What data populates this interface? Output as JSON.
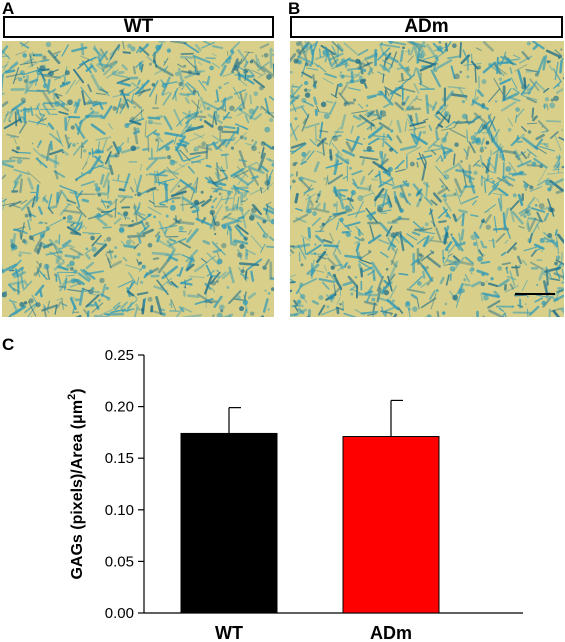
{
  "panels": {
    "a": {
      "letter": "A",
      "label": "WT"
    },
    "b": {
      "letter": "B",
      "label": "ADm"
    },
    "c": {
      "letter": "C"
    }
  },
  "colors": {
    "stain_background": "#d8cf8a",
    "stain_blue": "#2f9ab8",
    "stain_dark": "#1f6f8a",
    "bar_wt": "#000000",
    "bar_adm": "#ff0000"
  },
  "chart_data": {
    "type": "bar",
    "categories": [
      "WT",
      "ADm"
    ],
    "values": [
      0.174,
      0.171
    ],
    "errors": [
      0.025,
      0.035
    ],
    "ylabel_prefix": "GAGs (pixels)/Area (",
    "ylabel_unit": "μm",
    "ylabel_exp": "2",
    "ylabel_suffix": ")",
    "ylim": [
      0,
      0.25
    ],
    "yticks": [
      "0.00",
      "0.05",
      "0.10",
      "0.15",
      "0.20",
      "0.25"
    ],
    "grid": false
  }
}
